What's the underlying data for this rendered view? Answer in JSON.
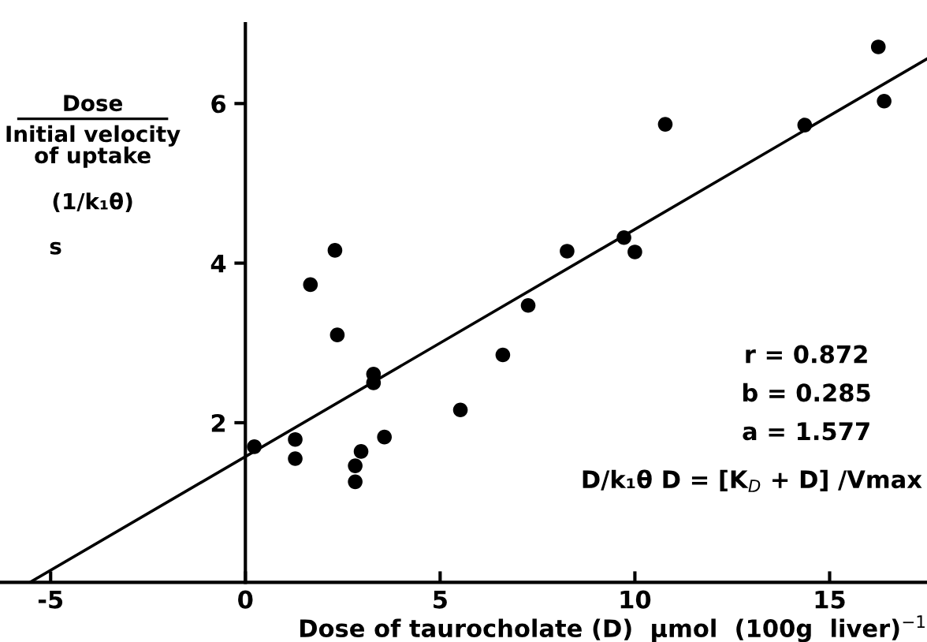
{
  "chart_data": {
    "type": "scatter",
    "xlabel": "Dose of taurocholate (D)  µmol  (100g  liver)$^{−1}$",
    "ylabel": "Dose\nInitial velocity\nof uptake\n(1/k₁θ)\ns",
    "annotations": [
      "r = 0.872",
      "b = 0.285",
      "a = 1.577",
      "D/k₁θ D = [K$_{D}$ + D] /Vmax"
    ],
    "series": [
      {
        "color": "#000000",
        "marker": "circle",
        "x": [
          0.23,
          1.28,
          1.28,
          1.67,
          2.3,
          2.36,
          3.29,
          3.29,
          2.82,
          2.82,
          2.97,
          3.57,
          5.52,
          6.61,
          7.26,
          8.26,
          9.72,
          10.0,
          10.78,
          14.36,
          16.25,
          16.4
        ],
        "values": [
          1.7,
          1.79,
          1.55,
          3.73,
          4.16,
          3.1,
          2.61,
          2.5,
          1.46,
          1.26,
          1.64,
          1.82,
          2.16,
          2.85,
          3.47,
          4.15,
          4.32,
          4.14,
          5.74,
          5.73,
          6.71,
          6.03
        ]
      },
      {
        "type": "line",
        "color": "#000000",
        "x": [
          -5.53,
          17.5
        ],
        "values": [
          0.0,
          6.56
        ]
      }
    ],
    "xlim": [
      -6.3,
      17.5
    ],
    "ylim": [
      0,
      7
    ],
    "xticks": [
      -5,
      0,
      5,
      10,
      15
    ],
    "yticks": [
      2,
      4,
      6
    ],
    "grid": false,
    "legend": false
  }
}
